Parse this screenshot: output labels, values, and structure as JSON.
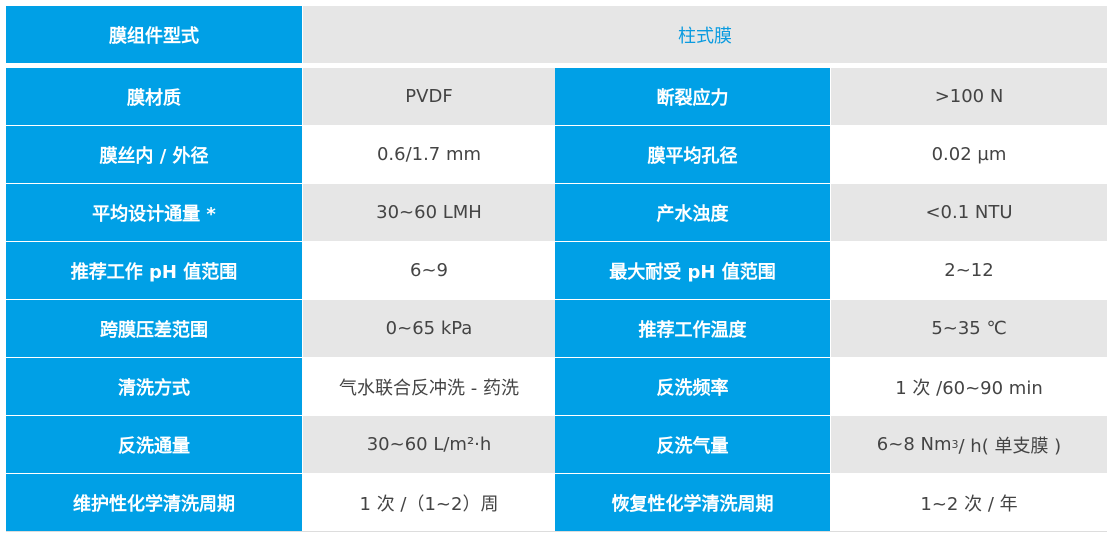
{
  "header": {
    "label": "膜组件型式",
    "value": "柱式膜"
  },
  "rows": [
    {
      "k1": "膜材质",
      "v1": "PVDF",
      "k2": "断裂应力",
      "v2": ">100 N"
    },
    {
      "k1": "膜丝内 / 外径",
      "v1": "0.6/1.7 mm",
      "k2": "膜平均孔径",
      "v2": "0.02 µm"
    },
    {
      "k1": "平均设计通量 *",
      "v1": "30~60 LMH",
      "k2": "产水浊度",
      "v2": "<0.1 NTU"
    },
    {
      "k1": "推荐工作 pH 值范围",
      "v1": "6~9",
      "k2": "最大耐受 pH 值范围",
      "v2": "2~12"
    },
    {
      "k1": "跨膜压差范围",
      "v1": "0~65 kPa",
      "k2": "推荐工作温度",
      "v2": "5~35 ℃"
    },
    {
      "k1": "清洗方式",
      "v1": "气水联合反冲洗 - 药洗",
      "k2": "反洗频率",
      "v2": "1 次 /60~90 min"
    },
    {
      "k1": "反洗通量",
      "v1": "30~60 L/m²·h",
      "k2": "反洗气量",
      "v2a": "6~8 Nm",
      "v2sup": "3",
      "v2b": "/ h( 单支膜 )"
    },
    {
      "k1": "维护性化学清洗周期",
      "v1": "1 次 /（1~2）周",
      "k2": "恢复性化学清洗周期",
      "v2": "1~2 次 / 年"
    }
  ]
}
